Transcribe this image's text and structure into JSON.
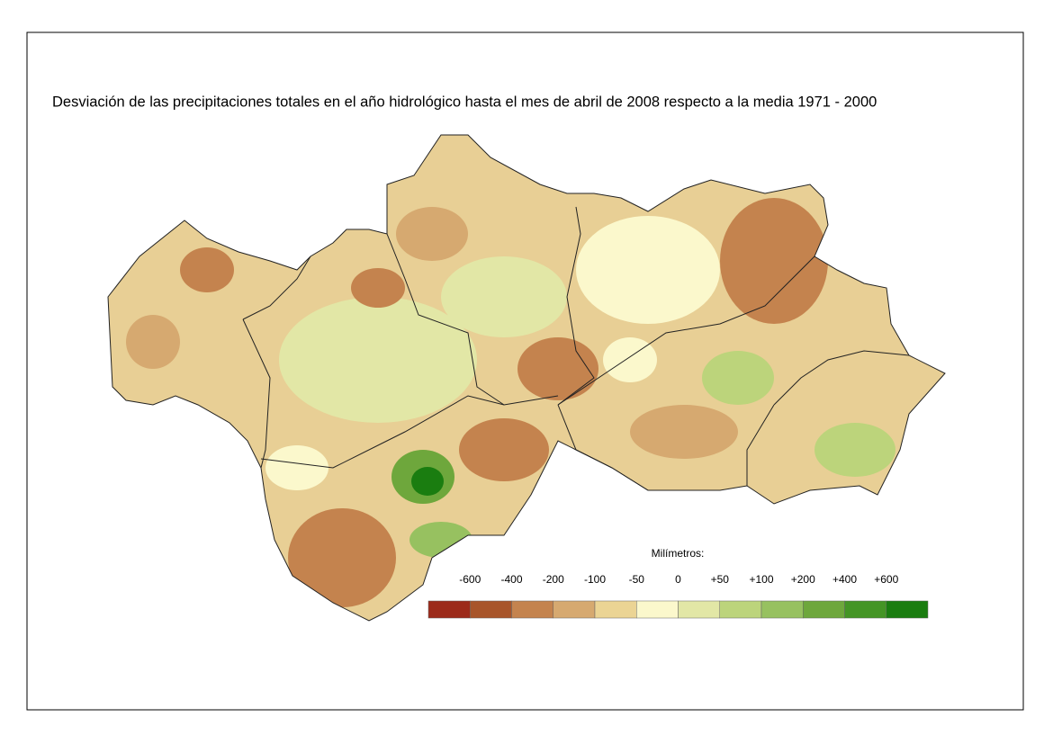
{
  "title": "Desviación de las precipitaciones totales en el año hidrológico hasta el mes de abril de 2008 respecto a la media 1971 - 2000",
  "legend": {
    "title": "Milímetros:",
    "labels": [
      "-600",
      "-400",
      "-200",
      "-100",
      "-50",
      "0",
      "+50",
      "+100",
      "+200",
      "+400",
      "+600"
    ],
    "colors": [
      "#9c2a1a",
      "#a8552a",
      "#c4834e",
      "#d6a970",
      "#ebd494",
      "#fbf8cc",
      "#e2e7a6",
      "#bcd47b",
      "#97c160",
      "#6ea73c",
      "#449525",
      "#1a7d10"
    ]
  }
}
